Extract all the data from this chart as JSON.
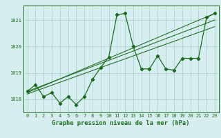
{
  "x": [
    0,
    1,
    2,
    3,
    4,
    5,
    6,
    7,
    8,
    9,
    10,
    11,
    12,
    13,
    14,
    15,
    16,
    17,
    18,
    19,
    20,
    21,
    22,
    23
  ],
  "y_main": [
    1018.3,
    1018.55,
    1018.1,
    1018.25,
    1017.85,
    1018.1,
    1017.8,
    1018.1,
    1018.75,
    1019.2,
    1019.6,
    1021.2,
    1021.25,
    1020.0,
    1019.15,
    1019.15,
    1019.65,
    1019.15,
    1019.1,
    1019.55,
    1019.55,
    1019.55,
    1021.1,
    1021.25
  ],
  "trend1_x": [
    0,
    23
  ],
  "trend1_y": [
    1018.25,
    1021.25
  ],
  "trend2_x": [
    0,
    23
  ],
  "trend2_y": [
    1018.3,
    1021.0
  ],
  "trend3_x": [
    0,
    23
  ],
  "trend3_y": [
    1018.2,
    1020.75
  ],
  "line_color": "#1a6b1a",
  "bg_color": "#d6eef0",
  "grid_color": "#a8cece",
  "xlabel": "Graphe pression niveau de la mer (hPa)",
  "xlim": [
    -0.5,
    23.5
  ],
  "ylim": [
    1017.5,
    1021.55
  ],
  "yticks": [
    1018,
    1019,
    1020,
    1021
  ],
  "xticks": [
    0,
    1,
    2,
    3,
    4,
    5,
    6,
    7,
    8,
    9,
    10,
    11,
    12,
    13,
    14,
    15,
    16,
    17,
    18,
    19,
    20,
    21,
    22,
    23
  ],
  "tick_fontsize": 5.0,
  "xlabel_fontsize": 6.2,
  "marker": "D",
  "marker_size": 2.2,
  "linewidth": 0.9,
  "trend_linewidth": 0.75
}
